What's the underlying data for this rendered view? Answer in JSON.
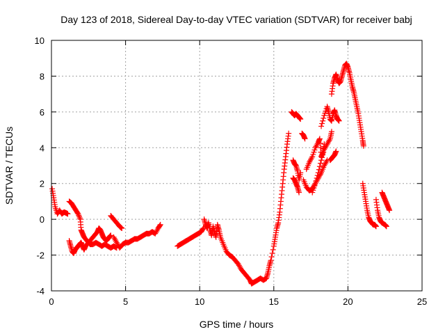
{
  "chart_data": {
    "type": "scatter",
    "title": "Day 123 of 2018, Sidereal Day-to-day VTEC variation (SDTVAR) for receiver babj",
    "xlabel": "GPS time / hours",
    "ylabel": "SDTVAR / TECUs",
    "xlim": [
      0,
      25
    ],
    "ylim": [
      -4,
      10
    ],
    "xticks": [
      0,
      5,
      10,
      15,
      20,
      25
    ],
    "yticks": [
      -4,
      -2,
      0,
      2,
      4,
      6,
      8,
      10
    ],
    "grid": true,
    "marker": "+",
    "color": "#ff0000",
    "series": [
      {
        "name": "SDTVAR",
        "segments": [
          [
            [
              0.05,
              1.7
            ],
            [
              0.15,
              1.2
            ],
            [
              0.25,
              0.7
            ],
            [
              0.4,
              0.3
            ],
            [
              0.55,
              0.5
            ],
            [
              0.7,
              0.3
            ],
            [
              0.85,
              0.4
            ],
            [
              1.0,
              0.35
            ],
            [
              1.1,
              0.3
            ]
          ],
          [
            [
              1.2,
              1.0
            ],
            [
              1.35,
              0.9
            ],
            [
              1.5,
              0.7
            ],
            [
              1.65,
              0.5
            ],
            [
              1.8,
              0.3
            ],
            [
              1.95,
              0.0
            ],
            [
              2.0,
              -0.6
            ],
            [
              2.1,
              -0.8
            ],
            [
              2.2,
              -1.0
            ],
            [
              2.4,
              -1.2
            ],
            [
              2.6,
              -1.4
            ],
            [
              2.8,
              -1.4
            ],
            [
              3.0,
              -1.3
            ],
            [
              3.2,
              -1.4
            ],
            [
              3.4,
              -1.5
            ],
            [
              3.6,
              -1.4
            ],
            [
              3.8,
              -1.5
            ],
            [
              4.0,
              -1.6
            ],
            [
              4.2,
              -1.5
            ],
            [
              4.4,
              -1.6
            ]
          ],
          [
            [
              1.2,
              -1.2
            ],
            [
              1.3,
              -1.5
            ],
            [
              1.4,
              -1.8
            ],
            [
              1.5,
              -1.9
            ],
            [
              1.6,
              -1.7
            ],
            [
              1.7,
              -1.6
            ],
            [
              1.8,
              -1.5
            ],
            [
              1.9,
              -1.4
            ],
            [
              2.0,
              -1.3
            ],
            [
              2.1,
              -1.5
            ],
            [
              2.2,
              -1.7
            ],
            [
              2.3,
              -1.5
            ],
            [
              2.5,
              -1.3
            ],
            [
              2.7,
              -1.1
            ],
            [
              2.9,
              -0.9
            ],
            [
              3.1,
              -0.7
            ],
            [
              3.2,
              -0.5
            ],
            [
              3.3,
              -0.6
            ],
            [
              3.4,
              -0.8
            ],
            [
              3.5,
              -1.0
            ],
            [
              3.6,
              -1.1
            ],
            [
              3.7,
              -1.2
            ],
            [
              3.8,
              -1.1
            ],
            [
              3.9,
              -1.0
            ],
            [
              4.0,
              -0.9
            ]
          ],
          [
            [
              4.0,
              0.2
            ],
            [
              4.2,
              0.0
            ],
            [
              4.4,
              -0.2
            ],
            [
              4.6,
              -0.4
            ],
            [
              4.75,
              -0.5
            ]
          ],
          [
            [
              4.2,
              -1.0
            ],
            [
              4.4,
              -1.3
            ],
            [
              4.6,
              -1.6
            ],
            [
              4.8,
              -1.4
            ],
            [
              5.0,
              -1.3
            ],
            [
              5.2,
              -1.3
            ],
            [
              5.4,
              -1.2
            ],
            [
              5.6,
              -1.1
            ],
            [
              5.8,
              -1.1
            ],
            [
              6.0,
              -1.0
            ],
            [
              6.2,
              -0.9
            ],
            [
              6.4,
              -0.8
            ],
            [
              6.6,
              -0.8
            ],
            [
              6.8,
              -0.7
            ],
            [
              7.0,
              -0.8
            ],
            [
              7.2,
              -0.5
            ],
            [
              7.35,
              -0.3
            ]
          ],
          [
            [
              8.5,
              -1.5
            ],
            [
              8.7,
              -1.4
            ],
            [
              8.9,
              -1.3
            ],
            [
              9.1,
              -1.2
            ],
            [
              9.3,
              -1.1
            ],
            [
              9.5,
              -1.0
            ],
            [
              9.7,
              -0.9
            ],
            [
              9.9,
              -0.8
            ],
            [
              10.1,
              -0.7
            ],
            [
              10.25,
              -0.5
            ]
          ],
          [
            [
              10.3,
              0.0
            ],
            [
              10.4,
              -0.3
            ],
            [
              10.5,
              -0.5
            ],
            [
              10.6,
              -0.2
            ],
            [
              10.7,
              -0.6
            ],
            [
              10.8,
              -0.9
            ],
            [
              10.9,
              -0.4
            ],
            [
              11.0,
              -0.7
            ],
            [
              11.1,
              -1.0
            ],
            [
              11.2,
              -0.3
            ],
            [
              11.3,
              -0.6
            ],
            [
              11.4,
              -1.0
            ],
            [
              11.6,
              -1.4
            ],
            [
              11.8,
              -1.8
            ],
            [
              12.0,
              -2.0
            ],
            [
              12.2,
              -2.1
            ],
            [
              12.4,
              -2.3
            ],
            [
              12.6,
              -2.5
            ],
            [
              12.8,
              -2.8
            ],
            [
              13.0,
              -3.0
            ],
            [
              13.2,
              -3.2
            ],
            [
              13.4,
              -3.4
            ],
            [
              13.5,
              -3.6
            ],
            [
              13.7,
              -3.5
            ],
            [
              13.9,
              -3.4
            ],
            [
              14.1,
              -3.3
            ],
            [
              14.3,
              -3.4
            ],
            [
              14.5,
              -3.3
            ],
            [
              14.6,
              -3.0
            ],
            [
              14.7,
              -2.6
            ],
            [
              14.8,
              -2.3
            ],
            [
              15.0,
              -1.5
            ],
            [
              15.1,
              -1.0
            ],
            [
              15.2,
              -0.5
            ],
            [
              15.3,
              -0.2
            ],
            [
              15.4,
              0.4
            ],
            [
              15.5,
              1.2
            ],
            [
              15.6,
              2.0
            ],
            [
              15.7,
              2.8
            ],
            [
              15.8,
              3.5
            ],
            [
              15.9,
              4.2
            ],
            [
              16.0,
              4.8
            ]
          ],
          [
            [
              16.2,
              6.0
            ],
            [
              16.3,
              5.9
            ],
            [
              16.4,
              5.8
            ],
            [
              16.5,
              5.9
            ],
            [
              16.6,
              5.8
            ],
            [
              16.7,
              5.7
            ],
            [
              16.8,
              5.6
            ]
          ],
          [
            [
              16.3,
              3.3
            ],
            [
              16.4,
              3.1
            ],
            [
              16.5,
              3.0
            ],
            [
              16.6,
              2.7
            ],
            [
              16.7,
              2.2
            ],
            [
              16.8,
              2.6
            ]
          ],
          [
            [
              16.3,
              2.3
            ],
            [
              16.4,
              2.2
            ],
            [
              16.5,
              2.0
            ],
            [
              16.6,
              1.8
            ],
            [
              16.7,
              1.5
            ]
          ],
          [
            [
              16.9,
              4.8
            ],
            [
              17.0,
              4.7
            ],
            [
              17.1,
              4.5
            ]
          ],
          [
            [
              17.0,
              2.2
            ],
            [
              17.2,
              1.8
            ],
            [
              17.4,
              1.6
            ],
            [
              17.6,
              1.7
            ],
            [
              17.8,
              2.0
            ],
            [
              18.0,
              2.3
            ],
            [
              18.2,
              2.6
            ],
            [
              18.4,
              3.0
            ],
            [
              18.6,
              3.3
            ]
          ],
          [
            [
              17.2,
              2.8
            ],
            [
              17.4,
              3.2
            ],
            [
              17.6,
              3.5
            ],
            [
              17.8,
              4.0
            ],
            [
              18.0,
              4.3
            ],
            [
              18.1,
              4.5
            ],
            [
              18.2,
              3.5
            ],
            [
              18.3,
              3.7
            ],
            [
              18.4,
              4.2
            ]
          ],
          [
            [
              17.6,
              1.5
            ],
            [
              17.8,
              2.0
            ],
            [
              18.0,
              2.6
            ],
            [
              18.2,
              3.3
            ],
            [
              18.4,
              3.9
            ],
            [
              18.6,
              4.2
            ],
            [
              18.8,
              4.5
            ],
            [
              18.9,
              4.9
            ]
          ],
          [
            [
              18.2,
              5.2
            ],
            [
              18.4,
              5.8
            ],
            [
              18.6,
              6.3
            ],
            [
              18.7,
              6.0
            ],
            [
              18.8,
              5.6
            ],
            [
              18.9,
              5.5
            ],
            [
              19.0,
              5.9
            ],
            [
              19.1,
              6.1
            ],
            [
              19.2,
              5.8
            ],
            [
              19.3,
              5.6
            ],
            [
              19.4,
              5.5
            ]
          ],
          [
            [
              18.8,
              3.3
            ],
            [
              18.9,
              3.4
            ],
            [
              19.0,
              3.5
            ],
            [
              19.1,
              3.6
            ],
            [
              19.2,
              3.8
            ]
          ],
          [
            [
              18.9,
              7.0
            ],
            [
              19.0,
              7.6
            ],
            [
              19.1,
              7.9
            ],
            [
              19.2,
              8.1
            ],
            [
              19.3,
              7.8
            ],
            [
              19.4,
              7.6
            ],
            [
              19.5,
              7.7
            ],
            [
              19.6,
              8.0
            ],
            [
              19.7,
              8.3
            ],
            [
              19.8,
              8.6
            ],
            [
              19.9,
              8.7
            ],
            [
              20.0,
              8.5
            ],
            [
              20.1,
              8.2
            ],
            [
              20.2,
              7.8
            ],
            [
              20.3,
              7.4
            ],
            [
              20.4,
              7.1
            ],
            [
              20.5,
              6.7
            ],
            [
              20.6,
              6.3
            ],
            [
              20.7,
              5.9
            ],
            [
              20.8,
              5.4
            ],
            [
              20.9,
              4.9
            ],
            [
              21.0,
              4.4
            ],
            [
              21.05,
              4.1
            ]
          ],
          [
            [
              21.0,
              2.0
            ],
            [
              21.1,
              1.5
            ],
            [
              21.2,
              1.0
            ],
            [
              21.3,
              0.5
            ],
            [
              21.4,
              0.1
            ],
            [
              21.5,
              -0.1
            ],
            [
              21.6,
              -0.2
            ],
            [
              21.7,
              -0.3
            ],
            [
              21.8,
              -0.3
            ],
            [
              21.9,
              -0.4
            ]
          ],
          [
            [
              21.9,
              1.1
            ],
            [
              22.0,
              0.5
            ],
            [
              22.1,
              0.1
            ],
            [
              22.2,
              -0.1
            ],
            [
              22.3,
              -0.2
            ],
            [
              22.5,
              -0.3
            ],
            [
              22.6,
              -0.4
            ]
          ],
          [
            [
              22.3,
              1.5
            ],
            [
              22.4,
              1.3
            ],
            [
              22.5,
              1.1
            ],
            [
              22.6,
              0.9
            ],
            [
              22.7,
              0.7
            ],
            [
              22.8,
              0.5
            ]
          ]
        ]
      }
    ]
  }
}
